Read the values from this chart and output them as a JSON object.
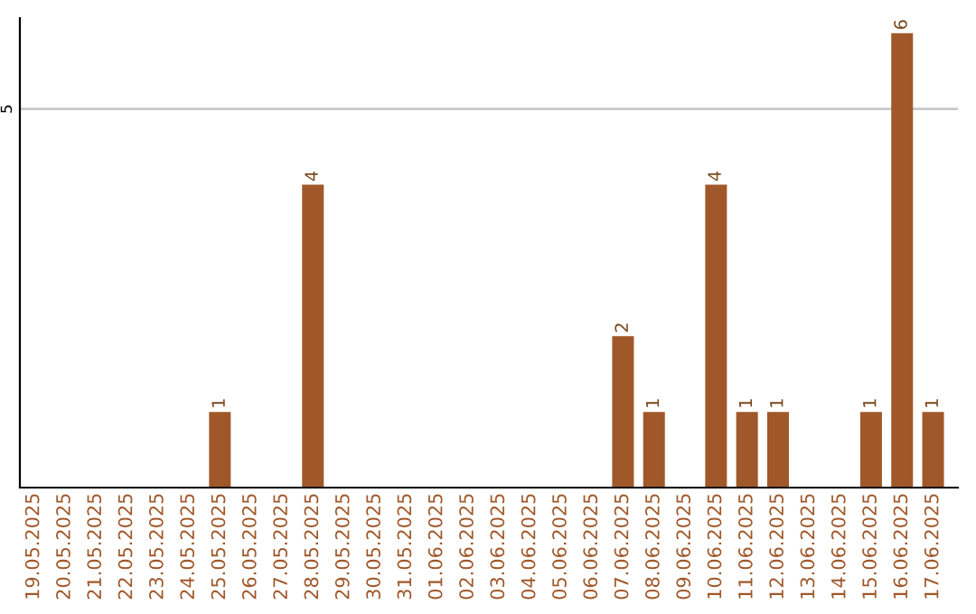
{
  "chart_data": {
    "type": "bar",
    "categories": [
      "19.05.2025",
      "20.05.2025",
      "21.05.2025",
      "22.05.2025",
      "23.05.2025",
      "24.05.2025",
      "25.05.2025",
      "26.05.2025",
      "27.05.2025",
      "28.05.2025",
      "29.05.2025",
      "30.05.2025",
      "31.05.2025",
      "01.06.2025",
      "02.06.2025",
      "03.06.2025",
      "04.06.2025",
      "05.06.2025",
      "06.06.2025",
      "07.06.2025",
      "08.06.2025",
      "09.06.2025",
      "10.06.2025",
      "11.06.2025",
      "12.06.2025",
      "13.06.2025",
      "14.06.2025",
      "15.06.2025",
      "16.06.2025",
      "17.06.2025"
    ],
    "values": [
      0,
      0,
      0,
      0,
      0,
      0,
      1,
      0,
      0,
      4,
      0,
      0,
      0,
      0,
      0,
      0,
      0,
      0,
      0,
      2,
      1,
      0,
      4,
      1,
      1,
      0,
      0,
      1,
      6,
      1
    ],
    "value_labels": [
      null,
      null,
      null,
      null,
      null,
      null,
      "1",
      null,
      null,
      "4",
      null,
      null,
      null,
      null,
      null,
      null,
      null,
      null,
      null,
      "2",
      "1",
      null,
      "4",
      "1",
      "1",
      null,
      null,
      "1",
      "6",
      "1"
    ],
    "color": "#a0582a",
    "ylim": [
      0,
      6.2
    ],
    "yticks": [
      5
    ],
    "grid": "y",
    "legend": false
  }
}
